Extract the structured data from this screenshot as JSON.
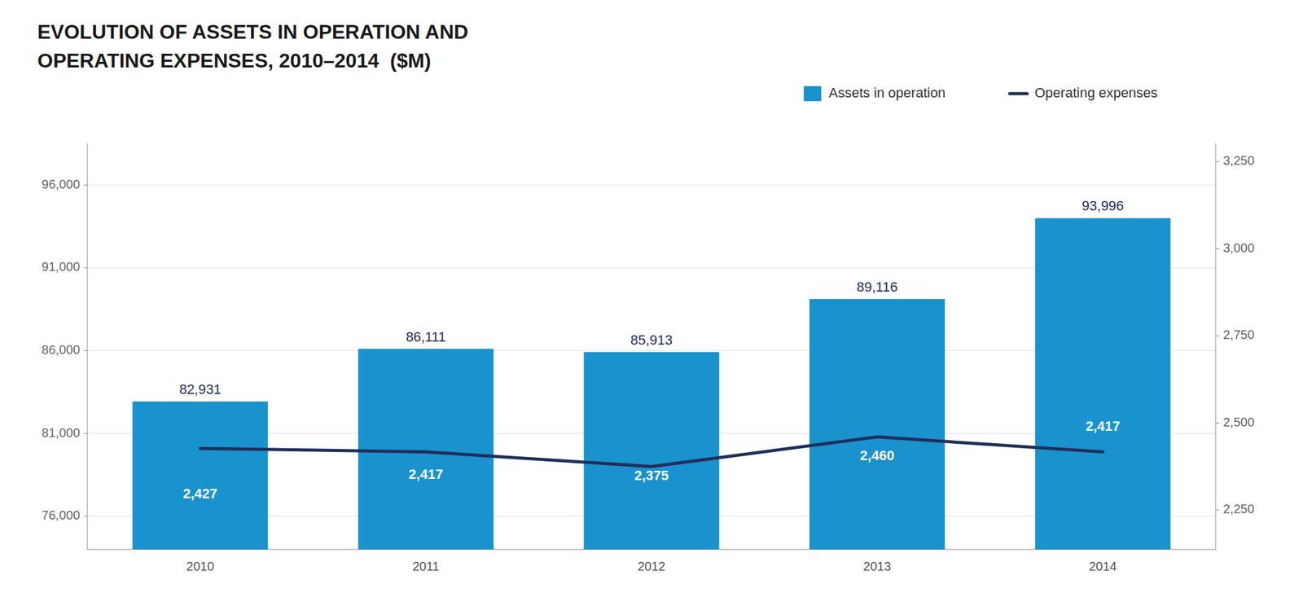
{
  "chart_data": {
    "type": "bar",
    "title": "EVOLUTION OF ASSETS IN OPERATION AND",
    "subtitle": "OPERATING EXPENSES, 2010–2014  ($M)",
    "categories": [
      "2010",
      "2011",
      "2012",
      "2013",
      "2014"
    ],
    "series": [
      {
        "name": "Assets in operation",
        "type": "bar",
        "color": "#1a92cd",
        "values": [
          82931,
          86111,
          85913,
          89116,
          93996
        ],
        "value_labels": [
          "82,931",
          "86,111",
          "85,913",
          "89,116",
          "93,996"
        ]
      },
      {
        "name": "Operating expenses",
        "type": "line",
        "axis": "y2",
        "color": "#1f2f5a",
        "values": [
          2427,
          2417,
          2375,
          2460,
          2417
        ],
        "value_labels": [
          "2,427",
          "2,417",
          "2,375",
          "2,460",
          "2,417"
        ]
      }
    ],
    "ylim": [
      74000,
      98500
    ],
    "yticks": [
      {
        "value": 76000,
        "label": "76,000"
      },
      {
        "value": 81000,
        "label": "81,000"
      },
      {
        "value": 86000,
        "label": "86,000"
      },
      {
        "value": 91000,
        "label": "91,000"
      },
      {
        "value": 96000,
        "label": "96,000"
      }
    ],
    "y2lim": [
      2137,
      3302
    ],
    "y2ticks": [
      {
        "value": 2250,
        "label": "2,250"
      },
      {
        "value": 2500,
        "label": "2,500"
      },
      {
        "value": 2750,
        "label": "2,750"
      },
      {
        "value": 3000,
        "label": "3,000"
      },
      {
        "value": 3250,
        "label": "3,250"
      }
    ],
    "grid": true,
    "legend": "upper right",
    "data_labels": true
  }
}
